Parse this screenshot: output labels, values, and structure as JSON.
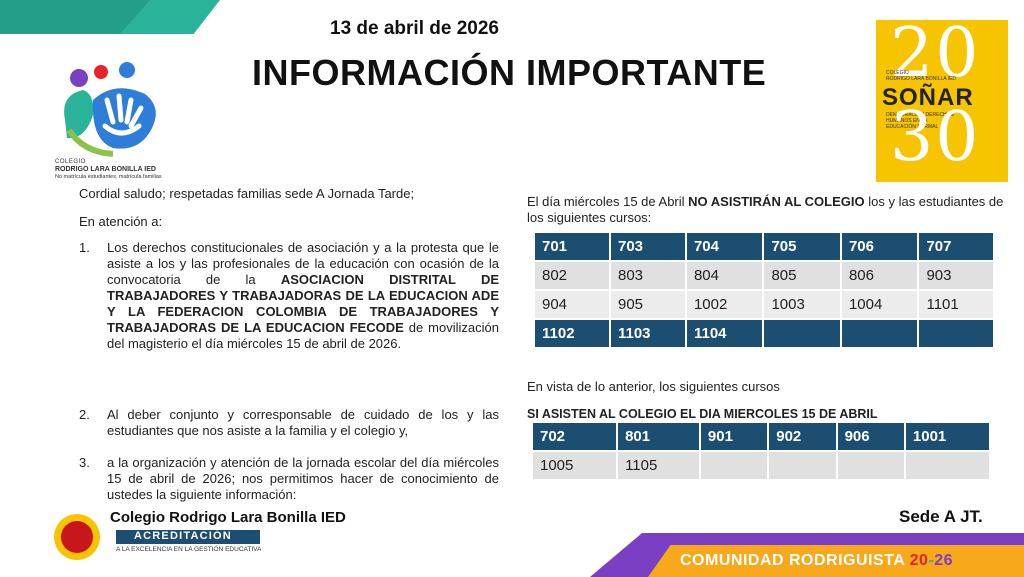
{
  "header": {
    "date": "13 de  abril  de 2026",
    "title": "INFORMACIÓN IMPORTANTE"
  },
  "logo": {
    "line1": "COLEGIO",
    "line2": "RODRIGO LARA BONILLA IED",
    "line3": "No matrícula estudiantes, matrícula familias"
  },
  "badge": {
    "small1a": "COLEGIO",
    "small1b": "RODRIGO LARA BONILLA IED",
    "word": "SOÑAR",
    "small2": "DEMOCRACIA Y DERECHOS HUMANOS EN LA EDUCACIÓN FORMAL",
    "top": "20",
    "bottom": "30"
  },
  "left": {
    "greeting": "Cordial saludo;  respetadas familias sede A Jornada Tarde;",
    "intro": "En atención a:",
    "items": [
      {
        "num": "1.",
        "pre": "Los derechos constitucionales de asociación y a la protesta que le asiste a los y las profesionales de la educación con ocasión de la convocatoria de la ",
        "bold": "ASOCIACION DISTRITAL DE TRABAJADORES Y TRABAJADORAS DE LA EDUCACION ADE Y LA FEDERACION COLOMBIA DE TRABAJADORES Y TRABAJADORAS DE LA EDUCACION FECODE",
        "post": " de movilización del magisterio el día miércoles  15  de abril de 2026."
      },
      {
        "num": "2.",
        "text": " Al deber conjunto y corresponsable de cuidado de los y las estudiantes que nos asiste a la familia y el colegio  y,"
      },
      {
        "num": "3.",
        "text": "a la organización y atención de la jornada escolar del día miércoles 15 de abril de 2026;  nos permitimos hacer de conocimiento de ustedes  la siguiente información:"
      }
    ]
  },
  "right": {
    "notice_pre": "El día miércoles 15 de Abril  ",
    "notice_bold": "NO ASISTIRÁN AL COLEGIO",
    "notice_post": " los y las estudiantes de los siguientes cursos:",
    "table1": [
      [
        "701",
        "703",
        "704",
        "705",
        "706",
        "707"
      ],
      [
        "802",
        "803",
        "804",
        "805",
        "806",
        "903"
      ],
      [
        "904",
        "905",
        "1002",
        "1003",
        "1004",
        "1101"
      ],
      [
        "1102",
        "1103",
        "1104",
        "",
        "",
        ""
      ]
    ],
    "view_text": "En vista de lo anterior,  los siguientes cursos",
    "attend_text": "SI ASISTEN AL COLEGIO EL DIA MIERCOLES 15 DE ABRIL",
    "table2": [
      [
        "702",
        "801",
        "901",
        "902",
        "906",
        "1001"
      ],
      [
        "1005",
        "1105",
        "",
        "",
        "",
        ""
      ]
    ]
  },
  "footer": {
    "colegio": "Colegio Rodrigo Lara Bonilla IED",
    "acreditacion": "ACREDITACIÓN",
    "acreditacion_sub": "A LA EXCELENCIA EN LA GESTIÓN EDUCATIVA",
    "sede": "Sede A JT.",
    "comunidad": "COMUNIDAD RODRIGUISTA ",
    "yr_a": "20",
    "yr_dash": "-",
    "yr_b": "26"
  },
  "colors": {
    "table_header": "#1c4e72",
    "table_light": "#e0e0e0",
    "accent_yellow": "#f7c400",
    "accent_purple": "#7b3fc4",
    "accent_orange": "#f7a81b",
    "accent_teal": "#2bb39a"
  }
}
